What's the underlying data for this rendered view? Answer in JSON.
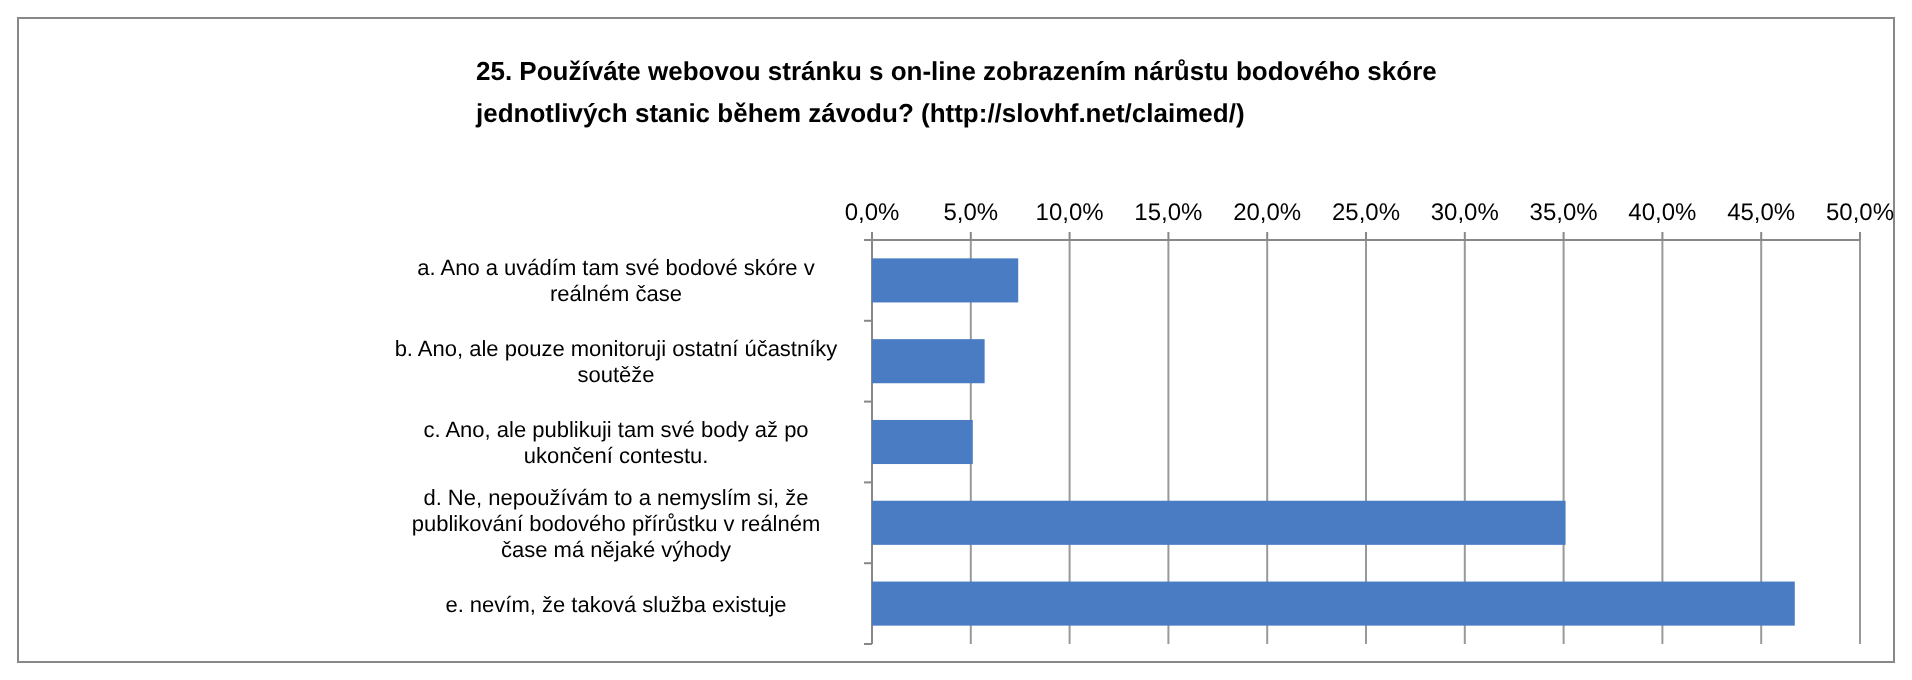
{
  "chart_data": {
    "type": "bar",
    "orientation": "horizontal",
    "title": "25. Používáte webovou stránku s on-line zobrazením nárůstu bodového skóre jednotlivých stanic během závodu? (http://slovhf.net/claimed/)",
    "categories": [
      "a. Ano a uvádím tam své bodové skóre v reálném čase",
      "b. Ano, ale pouze monitoruji ostatní účastníky soutěže",
      "c. Ano, ale publikuji tam své body až po ukončení contestu.",
      "d. Ne, nepoužívám to a nemyslím si, že publikování bodového přírůstku v reálném čase má nějaké výhody",
      "e. nevím, že taková služba existuje"
    ],
    "values": [
      7.4,
      5.7,
      5.1,
      35.1,
      46.7
    ],
    "color": "#4a7cc4",
    "xlim": [
      0,
      50
    ],
    "xticks": [
      {
        "value": 0,
        "label": "0,0%"
      },
      {
        "value": 5,
        "label": "5,0%"
      },
      {
        "value": 10,
        "label": "10,0%"
      },
      {
        "value": 15,
        "label": "15,0%"
      },
      {
        "value": 20,
        "label": "20,0%"
      },
      {
        "value": 25,
        "label": "25,0%"
      },
      {
        "value": 30,
        "label": "30,0%"
      },
      {
        "value": 35,
        "label": "35,0%"
      },
      {
        "value": 40,
        "label": "40,0%"
      },
      {
        "value": 45,
        "label": "45,0%"
      },
      {
        "value": 50,
        "label": "50,0%"
      }
    ],
    "grid": "x"
  }
}
